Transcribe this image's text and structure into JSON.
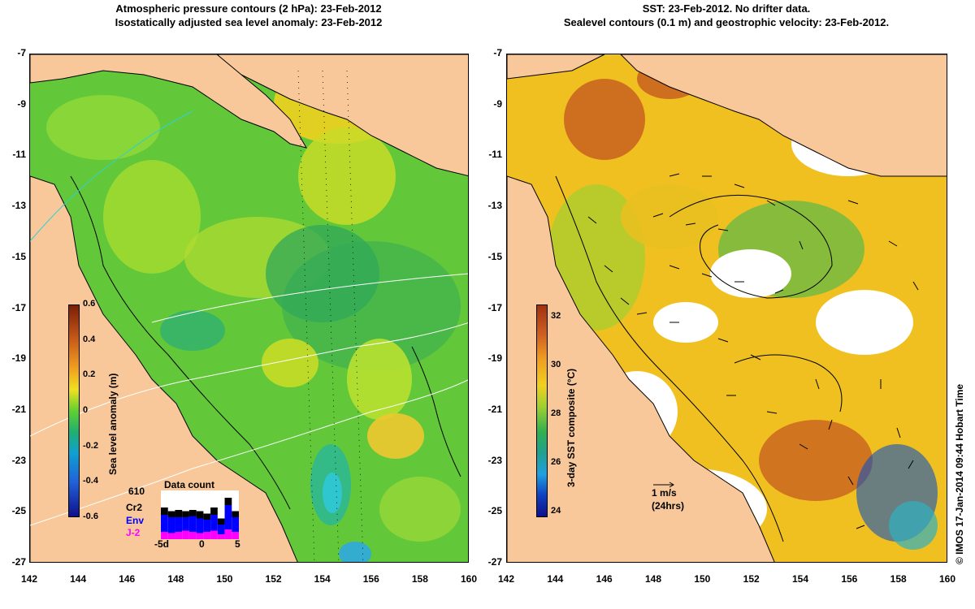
{
  "left": {
    "title_line1": "Atmospheric pressure contours (2 hPa): 23-Feb-2012",
    "title_line2": "Isostatically adjusted sea level anomaly: 23-Feb-2012",
    "colorbar_label": "Sea level anomaly (m)",
    "colorbar_ticks": [
      "0.6",
      "0.4",
      "0.2",
      "0",
      "-0.2",
      "-0.4",
      "-0.6"
    ],
    "inset": {
      "title": "Data count",
      "count": "610",
      "series": [
        {
          "name": "Cr2",
          "color": "#000000"
        },
        {
          "name": "Env",
          "color": "#0000ff"
        },
        {
          "name": "J-2",
          "color": "#ff00ff"
        }
      ],
      "x_ticks": [
        "-5d",
        "0",
        "5"
      ],
      "bars": [
        {
          "j2": 6,
          "env": 14,
          "cr2": 6
        },
        {
          "j2": 5,
          "env": 13,
          "cr2": 5
        },
        {
          "j2": 6,
          "env": 12,
          "cr2": 6
        },
        {
          "j2": 7,
          "env": 11,
          "cr2": 5
        },
        {
          "j2": 6,
          "env": 13,
          "cr2": 5
        },
        {
          "j2": 5,
          "env": 12,
          "cr2": 6
        },
        {
          "j2": 6,
          "env": 10,
          "cr2": 5
        },
        {
          "j2": 7,
          "env": 13,
          "cr2": 6
        },
        {
          "j2": 4,
          "env": 8,
          "cr2": 5
        },
        {
          "j2": 8,
          "env": 20,
          "cr2": 6
        },
        {
          "j2": 6,
          "env": 12,
          "cr2": 5
        }
      ]
    }
  },
  "right": {
    "title_line1": "SST: 23-Feb-2012. No drifter data.",
    "title_line2": "Sealevel contours (0.1 m) and geostrophic velocity: 23-Feb-2012.",
    "colorbar_label": "3-day SST composite (°C)",
    "colorbar_ticks": [
      "32",
      "30",
      "28",
      "26",
      "24"
    ],
    "velocity_scale": "1 m/s",
    "velocity_scale_note": "(24hrs)"
  },
  "axes": {
    "x_ticks": [
      "142",
      "144",
      "146",
      "148",
      "150",
      "152",
      "154",
      "156",
      "158",
      "160"
    ],
    "y_ticks": [
      "-7",
      "-9",
      "-11",
      "-13",
      "-15",
      "-17",
      "-19",
      "-21",
      "-23",
      "-25",
      "-27"
    ],
    "x_range": [
      142,
      160
    ],
    "y_range": [
      -27,
      -7
    ]
  },
  "credit": "© IMOS 17-Jan-2014 09:44 Hobart Time",
  "colors": {
    "land": "#f8c89a",
    "sla_base": "#62c83a",
    "sst_base": "#f0c020",
    "contour": "#000000"
  }
}
